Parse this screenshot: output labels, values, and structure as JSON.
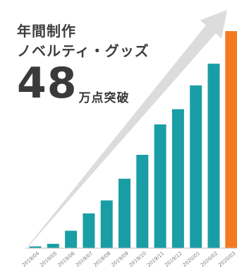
{
  "headline": {
    "line1": "年間制作",
    "line2": "ノベルティ・グッズ",
    "number": "48",
    "suffix": "万点突破"
  },
  "colors": {
    "bar": "#1a9ea5",
    "bar_highlight": "#f47a20",
    "arrow": "#dcdcdc",
    "axis": "#bdbdbd",
    "text": "#3d3d3d",
    "tick_text": "#7a7a7a"
  },
  "chart_data": {
    "type": "bar",
    "title": "",
    "xlabel": "",
    "ylabel": "",
    "ylim": [
      0,
      100
    ],
    "grid": false,
    "legend": "none",
    "trend_arrow": true,
    "categories": [
      "2019/04",
      "2019/05",
      "2019/06",
      "2019/07",
      "2019/08",
      "2019/09",
      "2019/10",
      "2019/11",
      "2019/12",
      "2020/01",
      "2020/02",
      "2020/03"
    ],
    "values": [
      0.8,
      2,
      8,
      16,
      22,
      32,
      43,
      57,
      64,
      75,
      85,
      100
    ],
    "highlight_category": "2020/03"
  }
}
